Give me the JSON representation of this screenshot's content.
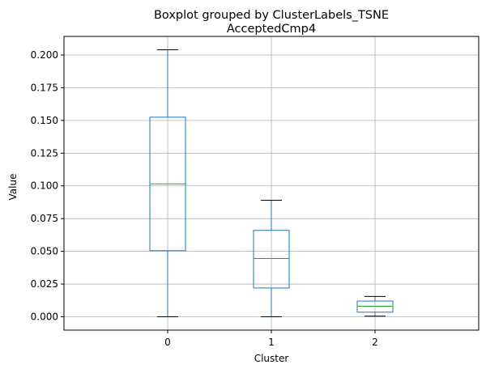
{
  "chart_data": {
    "type": "boxplot",
    "suptitle": "Boxplot grouped by ClusterLabels_TSNE",
    "title": "AcceptedCmp4",
    "xlabel": "Cluster",
    "ylabel": "Value",
    "categories": [
      "0",
      "1",
      "2"
    ],
    "boxes": [
      {
        "category": "0",
        "whisker_low": 0.0,
        "q1": 0.0505,
        "median": 0.1015,
        "q3": 0.1525,
        "whisker_high": 0.204
      },
      {
        "category": "1",
        "whisker_low": 0.0,
        "q1": 0.022,
        "median": 0.0445,
        "q3": 0.066,
        "whisker_high": 0.089
      },
      {
        "category": "2",
        "whisker_low": 0.0005,
        "q1": 0.0035,
        "median": 0.008,
        "q3": 0.012,
        "whisker_high": 0.0155
      }
    ],
    "ylim": [
      -0.0102,
      0.2142
    ],
    "yticks": [
      0.0,
      0.025,
      0.05,
      0.075,
      0.1,
      0.125,
      0.15,
      0.175,
      0.2
    ],
    "ytick_labels": [
      "0.000",
      "0.025",
      "0.050",
      "0.075",
      "0.100",
      "0.125",
      "0.150",
      "0.175",
      "0.200"
    ],
    "grid": true,
    "colors": {
      "box": "#1f77b4",
      "median": "#2ca02c",
      "cap": "#000000",
      "grid": "#b0b0b0",
      "axes": "#000000"
    }
  }
}
